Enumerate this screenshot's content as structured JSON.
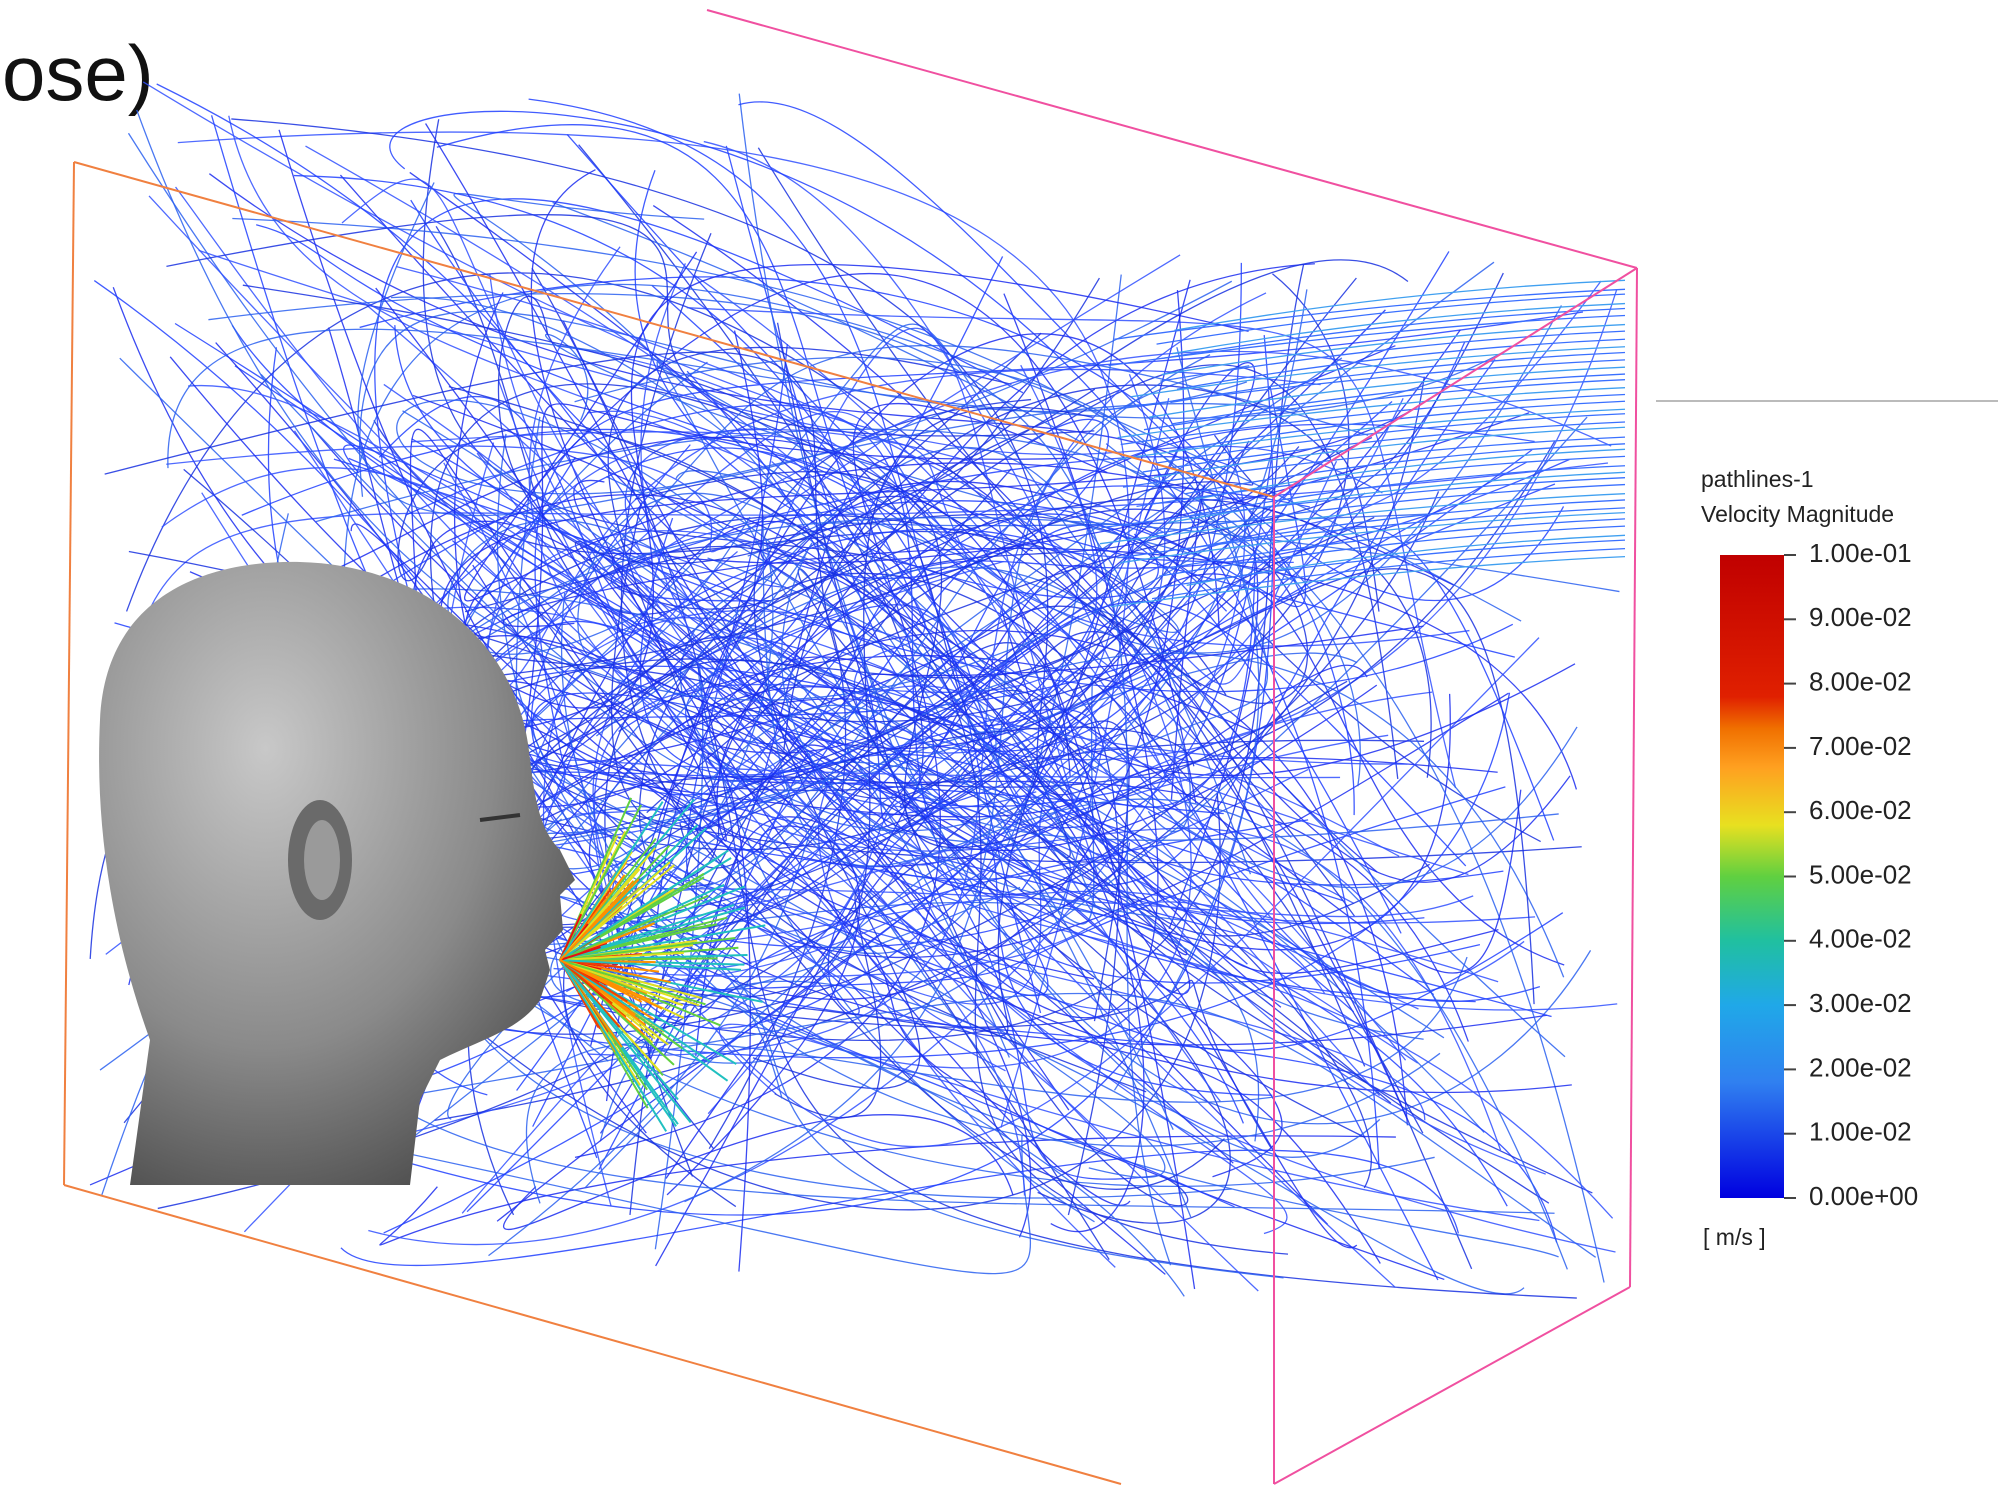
{
  "header": {
    "title_fragment": "ose)"
  },
  "legend": {
    "title": "pathlines-1",
    "subtitle": "Velocity Magnitude",
    "ticks": [
      "1.00e-01",
      "9.00e-02",
      "8.00e-02",
      "7.00e-02",
      "6.00e-02",
      "5.00e-02",
      "4.00e-02",
      "3.00e-02",
      "2.00e-02",
      "1.00e-02",
      "0.00e+00"
    ],
    "unit": "[ m/s ]"
  }
}
